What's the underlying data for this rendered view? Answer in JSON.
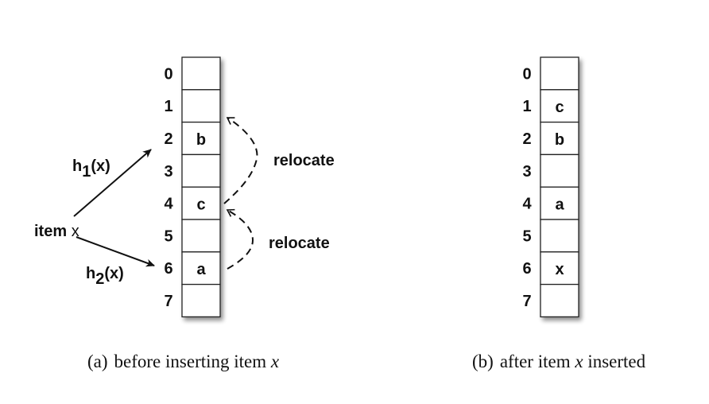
{
  "diagram": {
    "table_a": {
      "indices": [
        "0",
        "1",
        "2",
        "3",
        "4",
        "5",
        "6",
        "7"
      ],
      "cells": [
        "",
        "",
        "b",
        "",
        "c",
        "",
        "a",
        ""
      ]
    },
    "table_b": {
      "indices": [
        "0",
        "1",
        "2",
        "3",
        "4",
        "5",
        "6",
        "7"
      ],
      "cells": [
        "",
        "c",
        "b",
        "",
        "a",
        "",
        "x",
        ""
      ]
    },
    "item_label": {
      "word": "item",
      "var": "x"
    },
    "hash1": {
      "h": "h",
      "sub": "1",
      "arg": "(x)"
    },
    "hash2": {
      "h": "h",
      "sub": "2",
      "arg": "(x)"
    },
    "relocate_labels": [
      "relocate",
      "relocate"
    ],
    "caption_a": {
      "tag": "(a)",
      "text": "before inserting item",
      "var": "x"
    },
    "caption_b": {
      "tag": "(b)",
      "text": "after item",
      "var": "x",
      "tail": "inserted"
    }
  }
}
